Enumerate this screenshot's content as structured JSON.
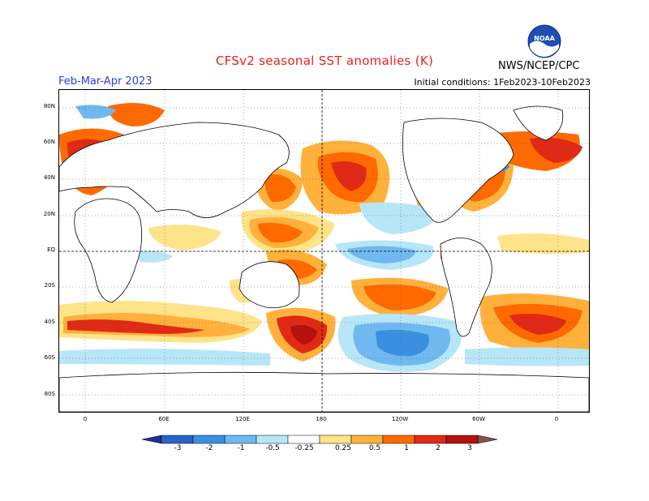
{
  "header": {
    "title": "CFSv2 seasonal SST anomalies (K)",
    "season": "Feb-Mar-Apr 2023",
    "initial_conditions": "Initial conditions: 1Feb2023-10Feb2023",
    "agency": "NWS/NCEP/CPC",
    "logo_text": "NOAA"
  },
  "axes": {
    "lat_labels": [
      "80N",
      "60N",
      "40N",
      "20N",
      "EQ",
      "20S",
      "40S",
      "60S",
      "80S"
    ],
    "lon_labels": [
      "0",
      "60E",
      "120E",
      "180",
      "120W",
      "60W",
      "0"
    ]
  },
  "colorbar": {
    "labels": [
      "-3",
      "-2",
      "-1",
      "-0.5",
      "-0.25",
      "0.25",
      "0.5",
      "1",
      "2",
      "3"
    ],
    "colors": [
      "#1f2f9a",
      "#2a63c7",
      "#3b8fe0",
      "#6fb8f0",
      "#b7e6f8",
      "#ffffff",
      "#ffe389",
      "#ffb13c",
      "#ff6a00",
      "#e02a16",
      "#b3120e",
      "#8a5040"
    ]
  },
  "colors": {
    "title": "#e8201c",
    "season": "#2b3fd6"
  },
  "map": {
    "type": "sst-anomaly",
    "features": [
      "Warm anomalies North Pacific 30-50N",
      "Warm anomalies western tropical Pacific",
      "Cool anomalies central equatorial Pacific",
      "Cool anomalies South Pacific 40-60S",
      "Warm anomalies Southern Ocean band 40S",
      "Warm anomalies North Atlantic"
    ]
  }
}
